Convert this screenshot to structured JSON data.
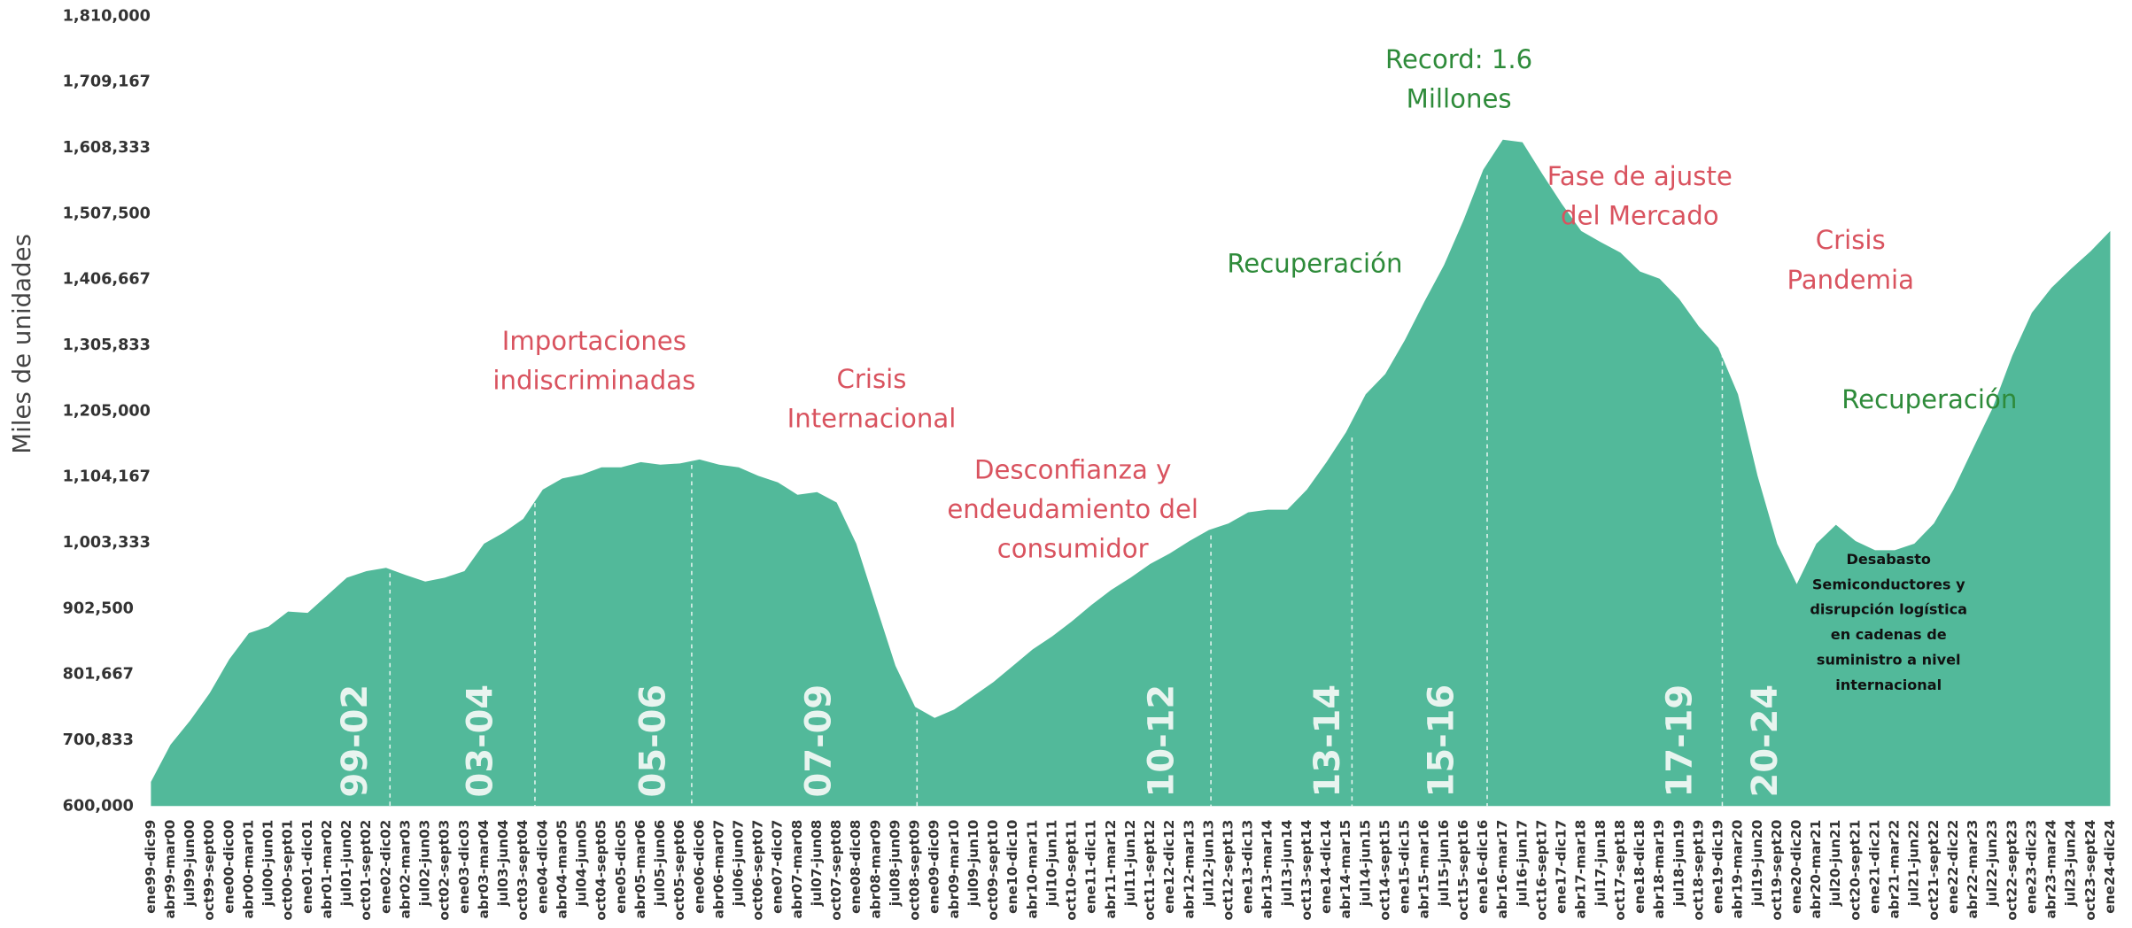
{
  "chart_data": {
    "type": "area",
    "y_label": "Miles de unidades",
    "color": "#52b99a",
    "categories": [
      "ene99-dic99",
      "abr99-mar00",
      "jul99-jun00",
      "oct99-sept00",
      "ene00-dic00",
      "abr00-mar01",
      "jul00-jun01",
      "oct00-sept01",
      "ene01-dic01",
      "abr01-mar02",
      "jul01-jun02",
      "oct01-sept02",
      "ene02-dic02",
      "abr02-mar03",
      "jul02-jun03",
      "oct02-sept03",
      "ene03-dic03",
      "abr03-mar04",
      "jul03-jun04",
      "oct03-sept04",
      "ene04-dic04",
      "abr04-mar05",
      "jul04-jun05",
      "oct04-sept05",
      "ene05-dic05",
      "abr05-mar06",
      "jul05-jun06",
      "oct05-sept06",
      "ene06-dic06",
      "abr06-mar07",
      "jul06-jun07",
      "oct06-sept07",
      "ene07-dic07",
      "abr07-mar08",
      "jul07-jun08",
      "oct07-sept08",
      "ene08-dic08",
      "abr08-mar09",
      "jul08-jun09",
      "oct08-sept09",
      "ene09-dic09",
      "abr09-mar10",
      "jul09-jun10",
      "oct09-sept10",
      "ene10-dic10",
      "abr10-mar11",
      "jul10-jun11",
      "oct10-sept11",
      "ene11-dic11",
      "abr11-mar12",
      "jul11-jun12",
      "oct11-sept12",
      "ene12-dic12",
      "abr12-mar13",
      "jul12-jun13",
      "oct12-sept13",
      "ene13-dic13",
      "abr13-mar14",
      "jul13-jun14",
      "oct13-sept14",
      "ene14-dic14",
      "abr14-mar15",
      "jul14-jun15",
      "oct14-sept15",
      "ene15-dic15",
      "abr15-mar16",
      "jul15-jun16",
      "oct15-sept16",
      "ene16-dic16",
      "abr16-mar17",
      "jul16-jun17",
      "oct16-sept17",
      "ene17-dic17",
      "abr17-mar18",
      "jul17-jun18",
      "oct17-sept18",
      "ene18-dic18",
      "abr18-mar19",
      "jul18-jun19",
      "oct18-sept19",
      "ene19-dic19",
      "abr19-mar20",
      "jul19-jun20",
      "oct19-sept20",
      "ene20-dic20",
      "abr20-mar21",
      "jul20-jun21",
      "oct20-sept21",
      "ene21-dic21",
      "abr21-mar22",
      "jul21-jun22",
      "oct21-sept22",
      "ene22-dic22",
      "abr22-mar23",
      "jul22-jun23",
      "oct22-sept23",
      "ene23-dic23",
      "abr23-mar24",
      "jul23-jun24",
      "oct23-sept24",
      "ene24-dic24"
    ],
    "values": [
      637000,
      694000,
      731000,
      773000,
      825000,
      865000,
      875000,
      898000,
      896000,
      923000,
      950000,
      960000,
      965000,
      954000,
      944000,
      950000,
      960000,
      1002000,
      1019000,
      1040000,
      1085000,
      1102000,
      1108000,
      1119000,
      1119000,
      1127000,
      1123000,
      1125000,
      1131000,
      1123000,
      1119000,
      1106000,
      1096000,
      1077000,
      1081000,
      1065000,
      1002000,
      908000,
      815000,
      752000,
      735000,
      748000,
      769000,
      790000,
      815000,
      840000,
      860000,
      883000,
      908000,
      931000,
      950000,
      971000,
      987000,
      1006000,
      1023000,
      1033000,
      1050000,
      1054000,
      1054000,
      1085000,
      1127000,
      1173000,
      1231000,
      1262000,
      1314000,
      1373000,
      1429000,
      1498000,
      1575000,
      1621000,
      1617000,
      1569000,
      1523000,
      1481000,
      1464000,
      1448000,
      1419000,
      1408000,
      1377000,
      1335000,
      1302000,
      1231000,
      1106000,
      1002000,
      940000,
      1002000,
      1031000,
      1006000,
      992000,
      992000,
      1002000,
      1033000,
      1085000,
      1148000,
      1210000,
      1290000,
      1356000,
      1394000,
      1423000,
      1450000,
      1481000
    ],
    "ylim": [
      600000,
      1810000
    ],
    "yticks": [
      {
        "value": 600000,
        "label": "600,000"
      },
      {
        "value": 700833,
        "label": "700,833"
      },
      {
        "value": 801667,
        "label": "801,667"
      },
      {
        "value": 902500,
        "label": "902,500"
      },
      {
        "value": 1003333,
        "label": "1,003,333"
      },
      {
        "value": 1104167,
        "label": "1,104,167"
      },
      {
        "value": 1205000,
        "label": "1,205,000"
      },
      {
        "value": 1305833,
        "label": "1,305,833"
      },
      {
        "value": 1406667,
        "label": "1,406,667"
      },
      {
        "value": 1507500,
        "label": "1,507,500"
      },
      {
        "value": 1608333,
        "label": "1,608,333"
      },
      {
        "value": 1709167,
        "label": "1,709,167"
      },
      {
        "value": 1810000,
        "label": "1,810,000"
      }
    ],
    "periods": [
      "99-02",
      "03-04",
      "05-06",
      "07-09",
      "10-12",
      "13-14",
      "15-16",
      "17-19",
      "20-24"
    ],
    "annotations": [
      {
        "lines": [
          "Importaciones",
          "indiscriminadas"
        ],
        "color": "#d9535f"
      },
      {
        "lines": [
          "Crisis",
          "Internacional"
        ],
        "color": "#d9535f"
      },
      {
        "lines": [
          "Desconfianza y",
          "endeudamiento del",
          "consumidor"
        ],
        "color": "#d9535f"
      },
      {
        "lines": [
          "Recuperación"
        ],
        "color": "#2e8b3a"
      },
      {
        "lines": [
          "Record: 1.6",
          "Millones"
        ],
        "color": "#2e8b3a"
      },
      {
        "lines": [
          "Fase de ajuste",
          "del Mercado"
        ],
        "color": "#d9535f"
      },
      {
        "lines": [
          "Crisis",
          "Pandemia"
        ],
        "color": "#d9535f"
      },
      {
        "lines": [
          "Recuperación"
        ],
        "color": "#2e8b3a"
      },
      {
        "lines": [
          "Desabasto",
          "Semiconductores y",
          "disrupción logística",
          "en cadenas de",
          "suministro a nivel",
          "internacional"
        ],
        "color": "#111111"
      }
    ]
  }
}
